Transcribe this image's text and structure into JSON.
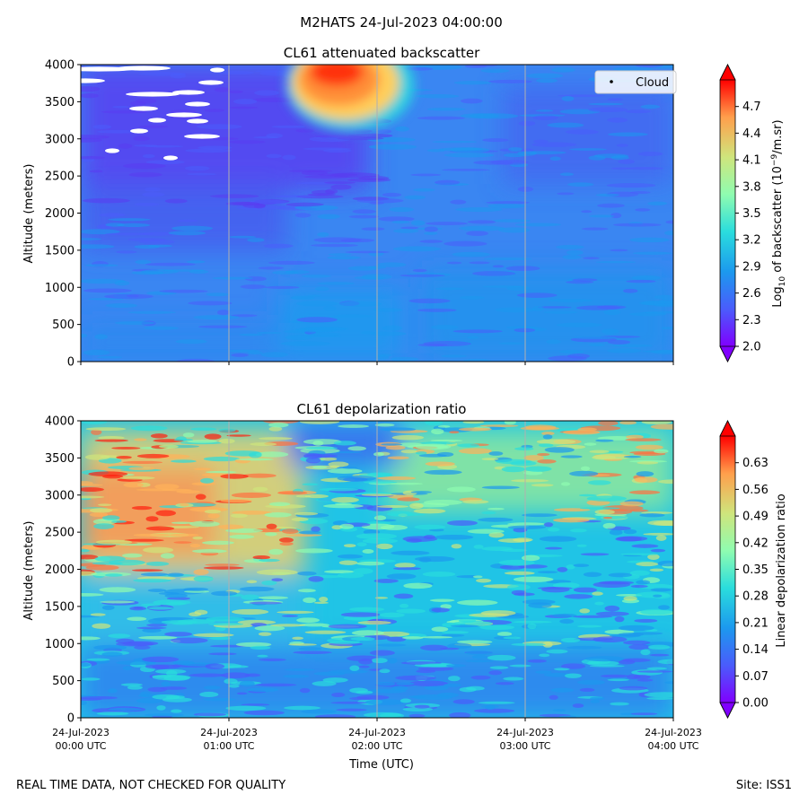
{
  "suptitle": "M2HATS 24-Jul-2023 04:00:00",
  "footer": {
    "left": "REAL TIME DATA, NOT CHECKED FOR QUALITY",
    "right": "Site: ISS1"
  },
  "chart_data": [
    {
      "type": "heatmap",
      "title": "CL61 attenuated backscatter",
      "ylabel": "Altitude (meters)",
      "xlabel": "",
      "ylim": [
        0,
        4000
      ],
      "yticks": [
        0,
        500,
        1000,
        1500,
        2000,
        2500,
        3000,
        3500,
        4000
      ],
      "xlim_hours": [
        0,
        4
      ],
      "grid": "vertical",
      "legend": {
        "position": "top-right",
        "entries": [
          "Cloud"
        ]
      },
      "colorbar": {
        "label": "Log10 of backscatter (10^-9/m.sr)",
        "label_parts": [
          "Log",
          "10",
          " of backscatter (10",
          "−9",
          "/m.sr)"
        ],
        "vmin": 2.0,
        "vmax": 5.0,
        "ticks": [
          "2.0",
          "2.3",
          "2.6",
          "2.9",
          "3.2",
          "3.5",
          "3.8",
          "4.1",
          "4.4",
          "4.7"
        ],
        "extend": "both",
        "colormap": "rainbow"
      },
      "features": [
        {
          "description": "strong layer",
          "time_start_h": 1.4,
          "time_end_h": 2.2,
          "alt_min": 3100,
          "alt_max": 4000,
          "value": 4.7
        },
        {
          "description": "background",
          "value": 2.7
        },
        {
          "description": "noise upper left",
          "time_start_h": 0.0,
          "time_end_h": 1.3,
          "alt_min": 2500,
          "alt_max": 4000,
          "value": 2.2
        }
      ]
    },
    {
      "type": "heatmap",
      "title": "CL61 depolarization ratio",
      "ylabel": "Altitude (meters)",
      "xlabel": "Time (UTC)",
      "ylim": [
        0,
        4000
      ],
      "yticks": [
        0,
        500,
        1000,
        1500,
        2000,
        2500,
        3000,
        3500,
        4000
      ],
      "xlim_hours": [
        0,
        4
      ],
      "xticks": [
        {
          "date": "24-Jul-2023",
          "time": "00:00 UTC"
        },
        {
          "date": "24-Jul-2023",
          "time": "01:00 UTC"
        },
        {
          "date": "24-Jul-2023",
          "time": "02:00 UTC"
        },
        {
          "date": "24-Jul-2023",
          "time": "03:00 UTC"
        },
        {
          "date": "24-Jul-2023",
          "time": "04:00 UTC"
        }
      ],
      "grid": "vertical",
      "colorbar": {
        "label": "Linear depolarization ratio",
        "vmin": 0.0,
        "vmax": 0.7,
        "ticks": [
          "0.00",
          "0.07",
          "0.14",
          "0.21",
          "0.28",
          "0.35",
          "0.42",
          "0.49",
          "0.56",
          "0.63"
        ],
        "extend": "both",
        "colormap": "rainbow"
      }
    }
  ]
}
